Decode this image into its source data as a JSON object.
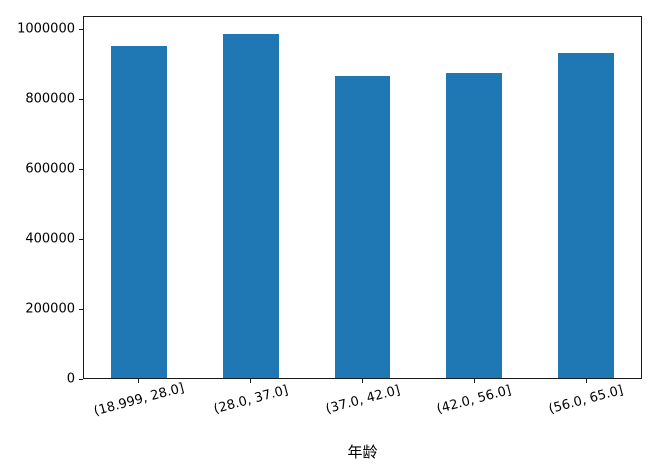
{
  "chart_data": {
    "type": "bar",
    "title": "",
    "xlabel": "年龄",
    "ylabel": "",
    "categories": [
      "(18.999, 28.0]",
      "(28.0, 37.0]",
      "(37.0, 42.0]",
      "(42.0, 56.0]",
      "(56.0, 65.0]"
    ],
    "values": [
      952000,
      986000,
      867000,
      876000,
      931000
    ],
    "ylim": [
      0,
      1038000
    ],
    "yticks": [
      0,
      200000,
      400000,
      600000,
      800000,
      1000000
    ],
    "ytick_labels": [
      "0",
      "200000",
      "400000",
      "600000",
      "800000",
      "1000000"
    ],
    "bar_color": "#1f77b4",
    "spine_color": "#1a1a1a",
    "bar_width_fraction": 0.5,
    "xtick_rotation_deg": 15,
    "grid": false,
    "legend": null
  }
}
